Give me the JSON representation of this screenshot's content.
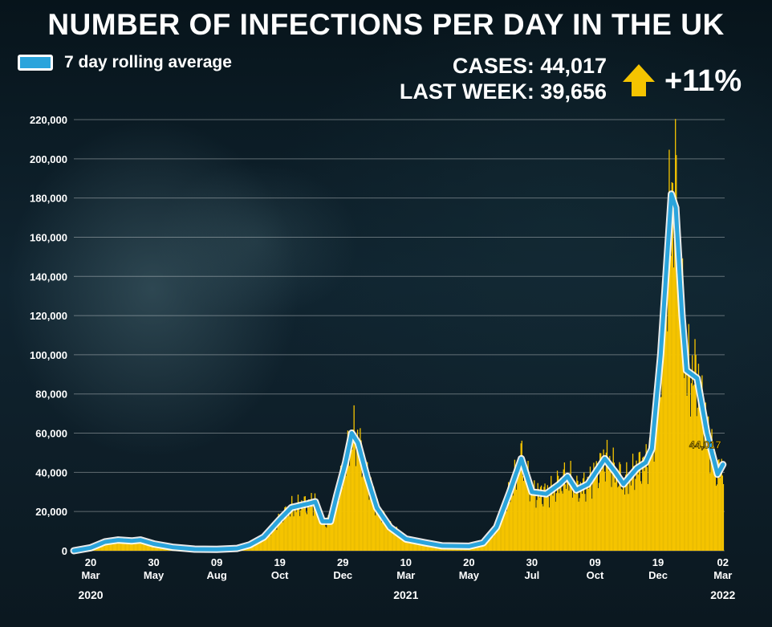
{
  "title": "NUMBER OF INFECTIONS PER DAY IN THE UK",
  "legend_label": "7 day rolling average",
  "cases_line": "CASES: 44,017",
  "last_week_line": "LAST WEEK: 39,656",
  "change": "+11%",
  "colors": {
    "bars": "#f5c400",
    "rolling_average": "#2aa4dc",
    "arrow": "#f5c400"
  },
  "icons": {
    "change_arrow": "up-arrow-icon"
  },
  "chart_data": {
    "type": "bar",
    "title": "NUMBER OF INFECTIONS PER DAY IN THE UK",
    "xlabel": "",
    "ylabel": "",
    "ylim": [
      0,
      220000
    ],
    "y_ticks": [
      "0",
      "20,000",
      "40,000",
      "60,000",
      "80,000",
      "100,000",
      "120,000",
      "140,000",
      "160,000",
      "180,000",
      "200,000",
      "220,000"
    ],
    "x_ticks": [
      {
        "day": "20",
        "month": "Mar",
        "date": "2020-03-20"
      },
      {
        "day": "30",
        "month": "May",
        "date": "2020-05-30"
      },
      {
        "day": "09",
        "month": "Aug",
        "date": "2020-08-09"
      },
      {
        "day": "19",
        "month": "Oct",
        "date": "2020-10-19"
      },
      {
        "day": "29",
        "month": "Dec",
        "date": "2020-12-29"
      },
      {
        "day": "10",
        "month": "Mar",
        "date": "2021-03-10"
      },
      {
        "day": "20",
        "month": "May",
        "date": "2021-05-20"
      },
      {
        "day": "30",
        "month": "Jul",
        "date": "2021-07-30"
      },
      {
        "day": "09",
        "month": "Oct",
        "date": "2021-10-09"
      },
      {
        "day": "19",
        "month": "Dec",
        "date": "2021-12-19"
      },
      {
        "day": "02",
        "month": "Mar",
        "date": "2022-03-02"
      }
    ],
    "year_labels": [
      {
        "label": "2020",
        "date": "2020-03-20"
      },
      {
        "label": "2021",
        "date": "2021-03-10"
      },
      {
        "label": "2022",
        "date": "2022-03-02"
      }
    ],
    "last_value_label": "44,017",
    "series": [
      {
        "name": "7 day rolling average",
        "type": "line",
        "points": [
          [
            "2020-03-01",
            0
          ],
          [
            "2020-03-20",
            1500
          ],
          [
            "2020-04-05",
            4500
          ],
          [
            "2020-04-20",
            5500
          ],
          [
            "2020-05-05",
            5000
          ],
          [
            "2020-05-15",
            5500
          ],
          [
            "2020-05-30",
            3500
          ],
          [
            "2020-06-20",
            1800
          ],
          [
            "2020-07-15",
            800
          ],
          [
            "2020-08-09",
            700
          ],
          [
            "2020-09-01",
            1200
          ],
          [
            "2020-09-15",
            3000
          ],
          [
            "2020-10-01",
            7000
          ],
          [
            "2020-10-19",
            16000
          ],
          [
            "2020-11-01",
            22000
          ],
          [
            "2020-11-10",
            23000
          ],
          [
            "2020-11-20",
            24000
          ],
          [
            "2020-11-28",
            25000
          ],
          [
            "2020-12-06",
            15000
          ],
          [
            "2020-12-15",
            15000
          ],
          [
            "2020-12-22",
            28000
          ],
          [
            "2021-01-01",
            45000
          ],
          [
            "2021-01-08",
            60000
          ],
          [
            "2021-01-15",
            55000
          ],
          [
            "2021-01-25",
            38000
          ],
          [
            "2021-02-05",
            22000
          ],
          [
            "2021-02-20",
            12000
          ],
          [
            "2021-03-10",
            6000
          ],
          [
            "2021-04-01",
            4000
          ],
          [
            "2021-04-20",
            2500
          ],
          [
            "2021-05-20",
            2300
          ],
          [
            "2021-06-05",
            4000
          ],
          [
            "2021-06-20",
            12000
          ],
          [
            "2021-07-05",
            30000
          ],
          [
            "2021-07-18",
            47000
          ],
          [
            "2021-07-30",
            30000
          ],
          [
            "2021-08-15",
            29000
          ],
          [
            "2021-08-30",
            34000
          ],
          [
            "2021-09-08",
            38000
          ],
          [
            "2021-09-18",
            31000
          ],
          [
            "2021-10-01",
            34000
          ],
          [
            "2021-10-20",
            47000
          ],
          [
            "2021-11-01",
            40000
          ],
          [
            "2021-11-10",
            34000
          ],
          [
            "2021-11-25",
            42000
          ],
          [
            "2021-12-05",
            45000
          ],
          [
            "2021-12-12",
            52000
          ],
          [
            "2021-12-22",
            100000
          ],
          [
            "2022-01-03",
            182000
          ],
          [
            "2022-01-08",
            175000
          ],
          [
            "2022-01-15",
            120000
          ],
          [
            "2022-01-20",
            92000
          ],
          [
            "2022-02-01",
            88000
          ],
          [
            "2022-02-12",
            60000
          ],
          [
            "2022-02-24",
            39000
          ],
          [
            "2022-03-02",
            44017
          ]
        ]
      }
    ]
  }
}
